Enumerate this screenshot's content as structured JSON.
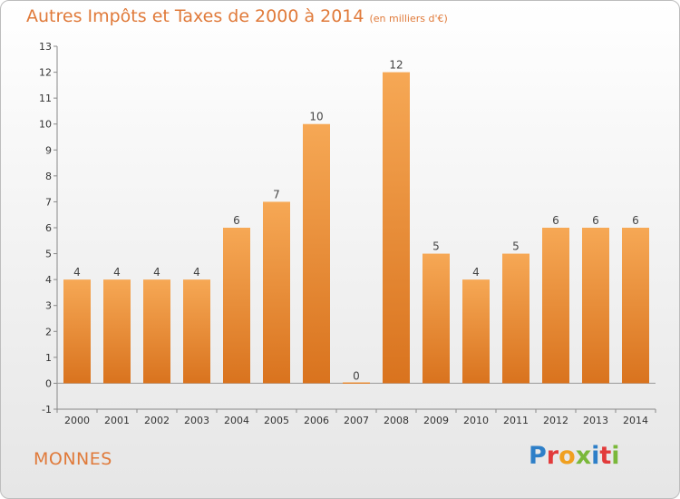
{
  "header": {
    "title": "Autres Impôts et Taxes de 2000 à 2014",
    "subtitle": "(en milliers d'€)"
  },
  "commune": "MONNES",
  "logo": {
    "text": "Proxiti",
    "letters": [
      {
        "ch": "P",
        "color": "#2e7fc8"
      },
      {
        "ch": "r",
        "color": "#e23b3b"
      },
      {
        "ch": "o",
        "color": "#f0a020"
      },
      {
        "ch": "x",
        "color": "#7ab83a"
      },
      {
        "ch": "i",
        "color": "#2e7fc8"
      },
      {
        "ch": "t",
        "color": "#e23b3b"
      },
      {
        "ch": "i",
        "color": "#7ab83a"
      }
    ]
  },
  "colors": {
    "accent": "#e07a3a",
    "bar_top": "#f6a855",
    "bar_bottom": "#d9731e"
  },
  "chart_data": {
    "type": "bar",
    "title": "Autres Impôts et Taxes de 2000 à 2014",
    "subtitle": "(en milliers d'€)",
    "xlabel": "",
    "ylabel": "",
    "categories": [
      "2000",
      "2001",
      "2002",
      "2003",
      "2004",
      "2005",
      "2006",
      "2007",
      "2008",
      "2009",
      "2010",
      "2011",
      "2012",
      "2013",
      "2014"
    ],
    "values": [
      4,
      4,
      4,
      4,
      6,
      7,
      10,
      0,
      12,
      5,
      4,
      5,
      6,
      6,
      6
    ],
    "ylim": [
      -1,
      13
    ],
    "yticks": [
      -1,
      0,
      1,
      2,
      3,
      4,
      5,
      6,
      7,
      8,
      9,
      10,
      11,
      12,
      13
    ],
    "grid": false,
    "legend": "none"
  }
}
